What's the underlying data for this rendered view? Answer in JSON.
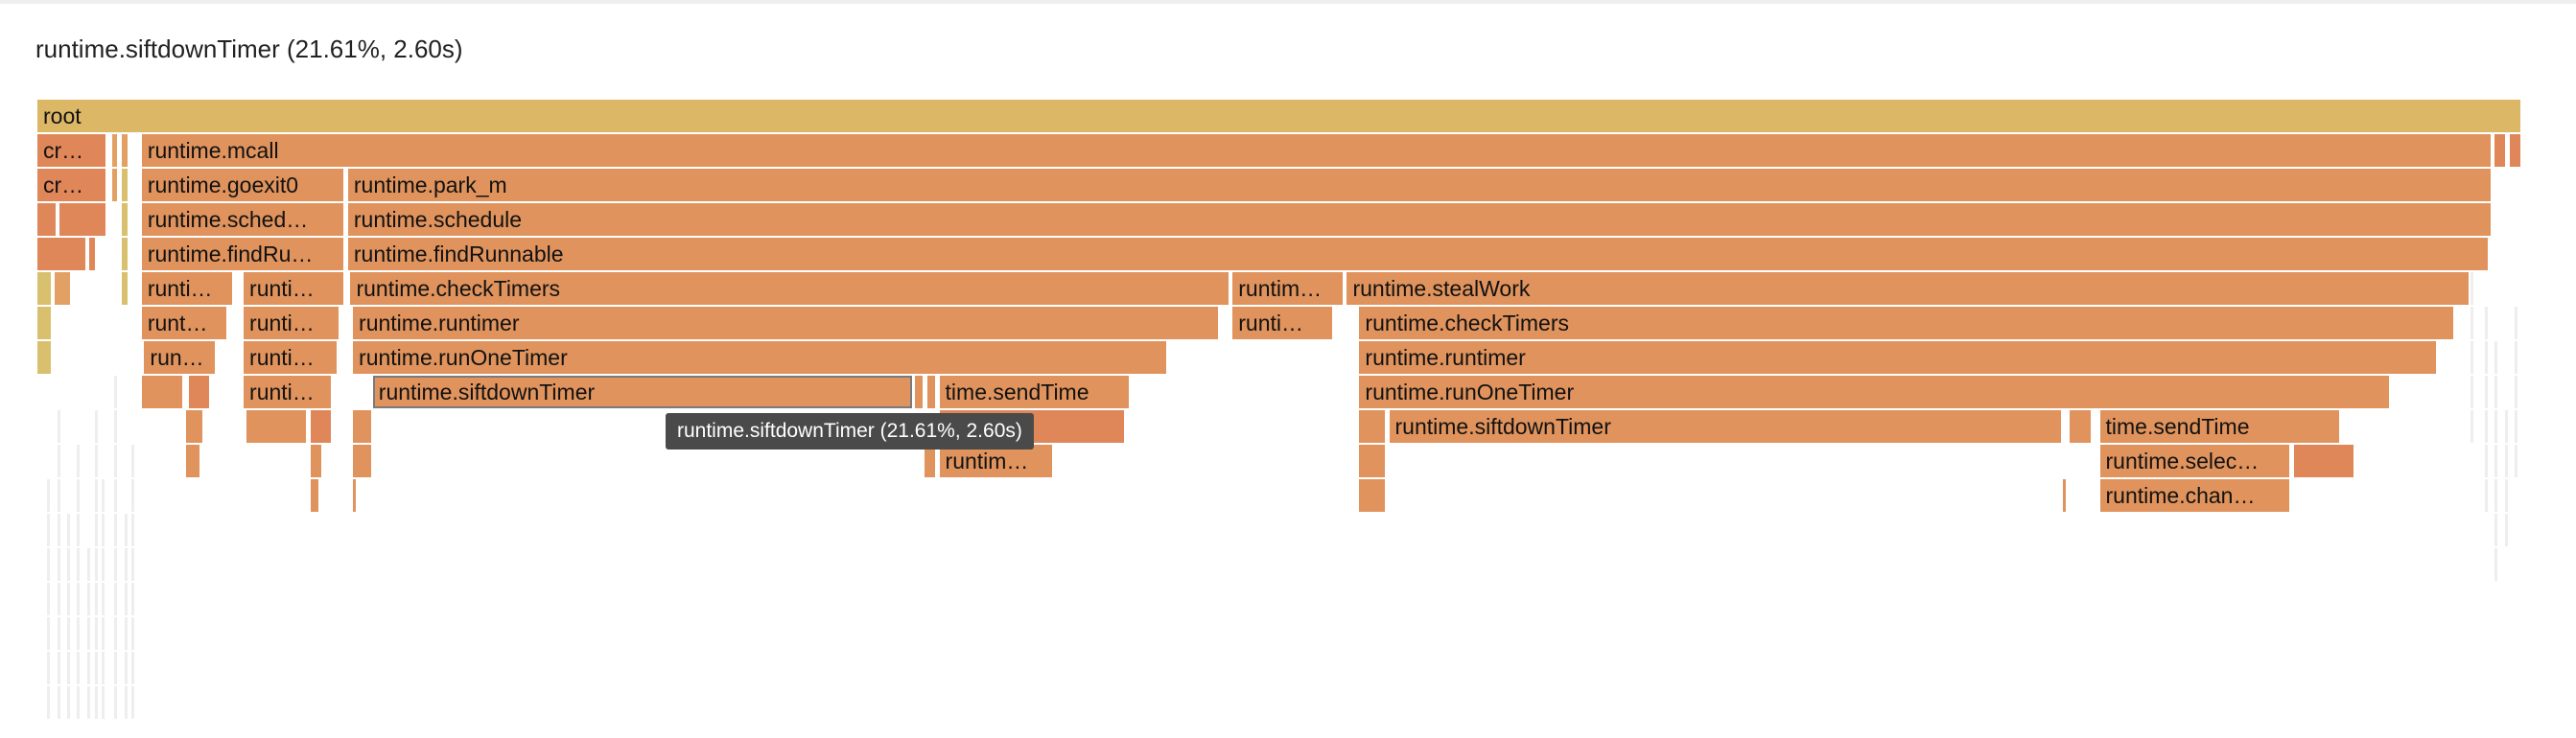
{
  "selection": {
    "title": "runtime.siftdownTimer (21.61%, 2.60s)"
  },
  "tooltip": {
    "text": "runtime.siftdownTimer (21.61%, 2.60s)"
  },
  "colors": {
    "root": "#dcb766",
    "default": "#e0935c",
    "warm": "#e0875a",
    "light": "#e3a064",
    "yellowish": "#d8c06e",
    "thin": "#eeeeee"
  },
  "frames": [
    {
      "label": "root",
      "depth": 0,
      "start": 0,
      "end": 1,
      "color": "root"
    },
    {
      "label": "cr…",
      "depth": 1,
      "start": 0.0,
      "end": 0.028,
      "color": "warm"
    },
    {
      "label": "",
      "depth": 1,
      "start": 0.03,
      "end": 0.033,
      "color": "light"
    },
    {
      "label": "",
      "depth": 1,
      "start": 0.034,
      "end": 0.037,
      "color": "light"
    },
    {
      "label": "",
      "depth": 1,
      "start": 0.04,
      "end": 0.041,
      "color": "thin"
    },
    {
      "label": "runtime.mcall",
      "depth": 1,
      "start": 0.042,
      "end": 0.988,
      "color": "default"
    },
    {
      "label": "",
      "depth": 1,
      "start": 0.989,
      "end": 0.994,
      "color": "warm"
    },
    {
      "label": "",
      "depth": 1,
      "start": 0.995,
      "end": 1.0,
      "color": "warm"
    },
    {
      "label": "cr…",
      "depth": 2,
      "start": 0.0,
      "end": 0.028,
      "color": "warm"
    },
    {
      "label": "",
      "depth": 2,
      "start": 0.03,
      "end": 0.033,
      "color": "light"
    },
    {
      "label": "",
      "depth": 2,
      "start": 0.034,
      "end": 0.037,
      "color": "yellowish"
    },
    {
      "label": "runtime.goexit0",
      "depth": 2,
      "start": 0.042,
      "end": 0.124,
      "color": "default"
    },
    {
      "label": "runtime.park_m",
      "depth": 2,
      "start": 0.125,
      "end": 0.988,
      "color": "default"
    },
    {
      "label": "",
      "depth": 3,
      "start": 0.0,
      "end": 0.008,
      "color": "warm"
    },
    {
      "label": "",
      "depth": 3,
      "start": 0.009,
      "end": 0.028,
      "color": "warm"
    },
    {
      "label": "",
      "depth": 3,
      "start": 0.034,
      "end": 0.037,
      "color": "yellowish"
    },
    {
      "label": "runtime.sched…",
      "depth": 3,
      "start": 0.042,
      "end": 0.124,
      "color": "default"
    },
    {
      "label": "runtime.schedule",
      "depth": 3,
      "start": 0.125,
      "end": 0.988,
      "color": "default"
    },
    {
      "label": "",
      "depth": 4,
      "start": 0.0,
      "end": 0.02,
      "color": "warm"
    },
    {
      "label": "",
      "depth": 4,
      "start": 0.021,
      "end": 0.024,
      "color": "warm"
    },
    {
      "label": "",
      "depth": 4,
      "start": 0.034,
      "end": 0.037,
      "color": "yellowish"
    },
    {
      "label": "runtime.findRu…",
      "depth": 4,
      "start": 0.042,
      "end": 0.124,
      "color": "default"
    },
    {
      "label": "runtime.findRunnable",
      "depth": 4,
      "start": 0.125,
      "end": 0.987,
      "color": "default"
    },
    {
      "label": "",
      "depth": 5,
      "start": 0.0,
      "end": 0.006,
      "color": "yellowish"
    },
    {
      "label": "",
      "depth": 5,
      "start": 0.007,
      "end": 0.014,
      "color": "light"
    },
    {
      "label": "",
      "depth": 5,
      "start": 0.034,
      "end": 0.037,
      "color": "yellowish"
    },
    {
      "label": "runti…",
      "depth": 5,
      "start": 0.042,
      "end": 0.079,
      "color": "default"
    },
    {
      "label": "runti…",
      "depth": 5,
      "start": 0.083,
      "end": 0.124,
      "color": "default"
    },
    {
      "label": "runtime.checkTimers",
      "depth": 5,
      "start": 0.126,
      "end": 0.48,
      "color": "default"
    },
    {
      "label": "runtim…",
      "depth": 5,
      "start": 0.481,
      "end": 0.526,
      "color": "default"
    },
    {
      "label": "runtime.stealWork",
      "depth": 5,
      "start": 0.527,
      "end": 0.979,
      "color": "default"
    },
    {
      "label": "",
      "depth": 6,
      "start": 0.0,
      "end": 0.006,
      "color": "yellowish"
    },
    {
      "label": "runt…",
      "depth": 6,
      "start": 0.042,
      "end": 0.077,
      "color": "default"
    },
    {
      "label": "runti…",
      "depth": 6,
      "start": 0.083,
      "end": 0.122,
      "color": "default"
    },
    {
      "label": "runtime.runtimer",
      "depth": 6,
      "start": 0.127,
      "end": 0.476,
      "color": "default"
    },
    {
      "label": "runti…",
      "depth": 6,
      "start": 0.481,
      "end": 0.522,
      "color": "default"
    },
    {
      "label": "runtime.checkTimers",
      "depth": 6,
      "start": 0.532,
      "end": 0.973,
      "color": "default"
    },
    {
      "label": "",
      "depth": 7,
      "start": 0.0,
      "end": 0.006,
      "color": "yellowish"
    },
    {
      "label": "run…",
      "depth": 7,
      "start": 0.043,
      "end": 0.072,
      "color": "default"
    },
    {
      "label": "runti…",
      "depth": 7,
      "start": 0.083,
      "end": 0.121,
      "color": "default"
    },
    {
      "label": "runtime.runOneTimer",
      "depth": 7,
      "start": 0.127,
      "end": 0.455,
      "color": "default"
    },
    {
      "label": "runtime.runtimer",
      "depth": 7,
      "start": 0.532,
      "end": 0.966,
      "color": "default"
    },
    {
      "label": "",
      "depth": 8,
      "start": 0.042,
      "end": 0.059,
      "color": "default"
    },
    {
      "label": "",
      "depth": 8,
      "start": 0.061,
      "end": 0.07,
      "color": "warm"
    },
    {
      "label": "runti…",
      "depth": 8,
      "start": 0.083,
      "end": 0.119,
      "color": "default"
    },
    {
      "label": "runtime.siftdownTimer",
      "depth": 8,
      "start": 0.135,
      "end": 0.352,
      "color": "default",
      "selected": true
    },
    {
      "label": "",
      "depth": 8,
      "start": 0.353,
      "end": 0.357,
      "color": "default"
    },
    {
      "label": "",
      "depth": 8,
      "start": 0.358,
      "end": 0.362,
      "color": "default"
    },
    {
      "label": "time.sendTime",
      "depth": 8,
      "start": 0.363,
      "end": 0.44,
      "color": "default"
    },
    {
      "label": "runtime.runOneTimer",
      "depth": 8,
      "start": 0.532,
      "end": 0.947,
      "color": "default"
    },
    {
      "label": "",
      "depth": 9,
      "start": 0.06,
      "end": 0.067,
      "color": "default"
    },
    {
      "label": "",
      "depth": 9,
      "start": 0.084,
      "end": 0.109,
      "color": "default"
    },
    {
      "label": "",
      "depth": 9,
      "start": 0.11,
      "end": 0.119,
      "color": "warm"
    },
    {
      "label": "",
      "depth": 9,
      "start": 0.127,
      "end": 0.135,
      "color": "default"
    },
    {
      "label": "m…",
      "depth": 9,
      "start": 0.363,
      "end": 0.438,
      "color": "warm"
    },
    {
      "label": "",
      "depth": 9,
      "start": 0.532,
      "end": 0.543,
      "color": "default"
    },
    {
      "label": "runtime.siftdownTimer",
      "depth": 9,
      "start": 0.544,
      "end": 0.815,
      "color": "default"
    },
    {
      "label": "",
      "depth": 9,
      "start": 0.818,
      "end": 0.827,
      "color": "default"
    },
    {
      "label": "time.sendTime",
      "depth": 9,
      "start": 0.83,
      "end": 0.927,
      "color": "default"
    },
    {
      "label": "",
      "depth": 10,
      "start": 0.06,
      "end": 0.066,
      "color": "default"
    },
    {
      "label": "",
      "depth": 10,
      "start": 0.11,
      "end": 0.115,
      "color": "default"
    },
    {
      "label": "",
      "depth": 10,
      "start": 0.127,
      "end": 0.135,
      "color": "default"
    },
    {
      "label": "",
      "depth": 10,
      "start": 0.357,
      "end": 0.362,
      "color": "default"
    },
    {
      "label": "runtim…",
      "depth": 10,
      "start": 0.363,
      "end": 0.409,
      "color": "default"
    },
    {
      "label": "",
      "depth": 10,
      "start": 0.532,
      "end": 0.543,
      "color": "default"
    },
    {
      "label": "runtime.selec…",
      "depth": 10,
      "start": 0.83,
      "end": 0.907,
      "color": "default"
    },
    {
      "label": "",
      "depth": 10,
      "start": 0.908,
      "end": 0.933,
      "color": "warm"
    },
    {
      "label": "",
      "depth": 11,
      "start": 0.11,
      "end": 0.114,
      "color": "default"
    },
    {
      "label": "",
      "depth": 11,
      "start": 0.127,
      "end": 0.129,
      "color": "default"
    },
    {
      "label": "",
      "depth": 11,
      "start": 0.532,
      "end": 0.543,
      "color": "default"
    },
    {
      "label": "",
      "depth": 11,
      "start": 0.815,
      "end": 0.817,
      "color": "default"
    },
    {
      "label": "runtime.chan…",
      "depth": 11,
      "start": 0.83,
      "end": 0.907,
      "color": "default"
    }
  ]
}
